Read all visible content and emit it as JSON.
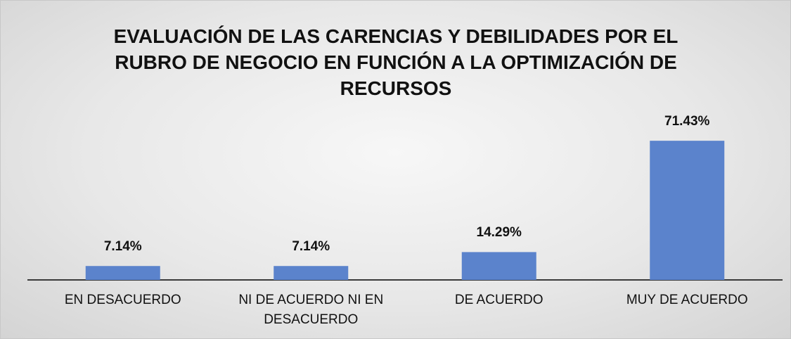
{
  "chart_data": {
    "type": "bar",
    "title": "EVALUACIÓN DE LAS CARENCIAS Y DEBILIDADES POR EL RUBRO DE NEGOCIO EN FUNCIÓN A LA OPTIMIZACIÓN DE RECURSOS",
    "categories": [
      "EN DESACUERDO",
      "NI DE ACUERDO NI EN DESACUERDO",
      "DE ACUERDO",
      "MUY DE ACUERDO"
    ],
    "values": [
      7.14,
      7.14,
      14.29,
      71.43
    ],
    "value_labels": [
      "7.14%",
      "7.14%",
      "14.29%",
      "71.43%"
    ],
    "color": "#5b83cc"
  }
}
